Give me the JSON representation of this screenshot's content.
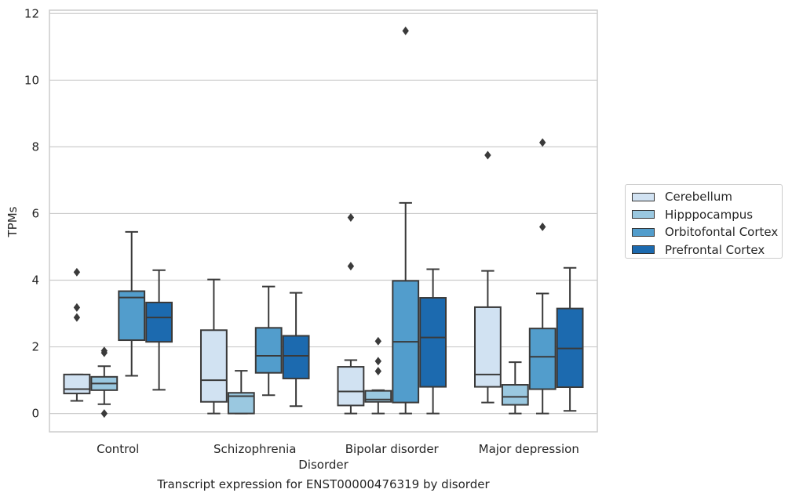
{
  "chart_data": {
    "type": "box",
    "title": "",
    "caption": "Transcript expression for ENST00000476319 by disorder",
    "xlabel": "Disorder",
    "ylabel": "TPMs",
    "ylim": [
      -0.55,
      12.1
    ],
    "yticks": [
      0,
      2,
      4,
      6,
      8,
      10,
      12
    ],
    "grid": true,
    "legend_position": "right",
    "categories": [
      "Control",
      "Schizophrenia",
      "Bipolar disorder",
      "Major depression"
    ],
    "series": [
      {
        "name": "Cerebellum",
        "color": "#d1e2f2",
        "boxes": [
          {
            "whislo": 0.38,
            "q1": 0.6,
            "med": 0.73,
            "q3": 1.17,
            "whishi": 1.17,
            "fliers": [
              2.88,
              3.18,
              4.24
            ]
          },
          {
            "whislo": 0.0,
            "q1": 0.35,
            "med": 1.0,
            "q3": 2.5,
            "whishi": 4.02,
            "fliers": []
          },
          {
            "whislo": 0.0,
            "q1": 0.24,
            "med": 0.66,
            "q3": 1.4,
            "whishi": 1.6,
            "fliers": [
              4.42,
              5.88
            ]
          },
          {
            "whislo": 0.33,
            "q1": 0.8,
            "med": 1.17,
            "q3": 3.19,
            "whishi": 4.28,
            "fliers": [
              7.75
            ]
          }
        ]
      },
      {
        "name": "Hipppocampus",
        "color": "#9ac8e0",
        "boxes": [
          {
            "whislo": 0.28,
            "q1": 0.7,
            "med": 0.9,
            "q3": 1.1,
            "whishi": 1.42,
            "fliers": [
              0.0,
              1.82,
              1.88
            ]
          },
          {
            "whislo": 0.0,
            "q1": 0.0,
            "med": 0.52,
            "q3": 0.62,
            "whishi": 1.28,
            "fliers": []
          },
          {
            "whislo": 0.0,
            "q1": 0.35,
            "med": 0.42,
            "q3": 0.68,
            "whishi": 0.7,
            "fliers": [
              1.27,
              1.57,
              2.17
            ]
          },
          {
            "whislo": 0.0,
            "q1": 0.26,
            "med": 0.5,
            "q3": 0.86,
            "whishi": 1.54,
            "fliers": []
          }
        ]
      },
      {
        "name": "Orbitofontal Cortex",
        "color": "#529dcc",
        "boxes": [
          {
            "whislo": 1.13,
            "q1": 2.2,
            "med": 3.48,
            "q3": 3.67,
            "whishi": 5.45,
            "fliers": []
          },
          {
            "whislo": 0.55,
            "q1": 1.22,
            "med": 1.73,
            "q3": 2.57,
            "whishi": 3.81,
            "fliers": []
          },
          {
            "whislo": 0.0,
            "q1": 0.33,
            "med": 2.15,
            "q3": 3.98,
            "whishi": 6.32,
            "fliers": [
              11.48
            ]
          },
          {
            "whislo": 0.0,
            "q1": 0.73,
            "med": 1.7,
            "q3": 2.55,
            "whishi": 3.6,
            "fliers": [
              5.6,
              8.13
            ]
          }
        ]
      },
      {
        "name": "Prefrontal Cortex",
        "color": "#1c6aaf",
        "boxes": [
          {
            "whislo": 0.71,
            "q1": 2.15,
            "med": 2.88,
            "q3": 3.33,
            "whishi": 4.3,
            "fliers": []
          },
          {
            "whislo": 0.22,
            "q1": 1.05,
            "med": 1.73,
            "q3": 2.33,
            "whishi": 3.62,
            "fliers": []
          },
          {
            "whislo": 0.0,
            "q1": 0.8,
            "med": 2.28,
            "q3": 3.47,
            "whishi": 4.33,
            "fliers": []
          },
          {
            "whislo": 0.08,
            "q1": 0.79,
            "med": 1.95,
            "q3": 3.15,
            "whishi": 4.37,
            "fliers": []
          }
        ]
      }
    ]
  }
}
